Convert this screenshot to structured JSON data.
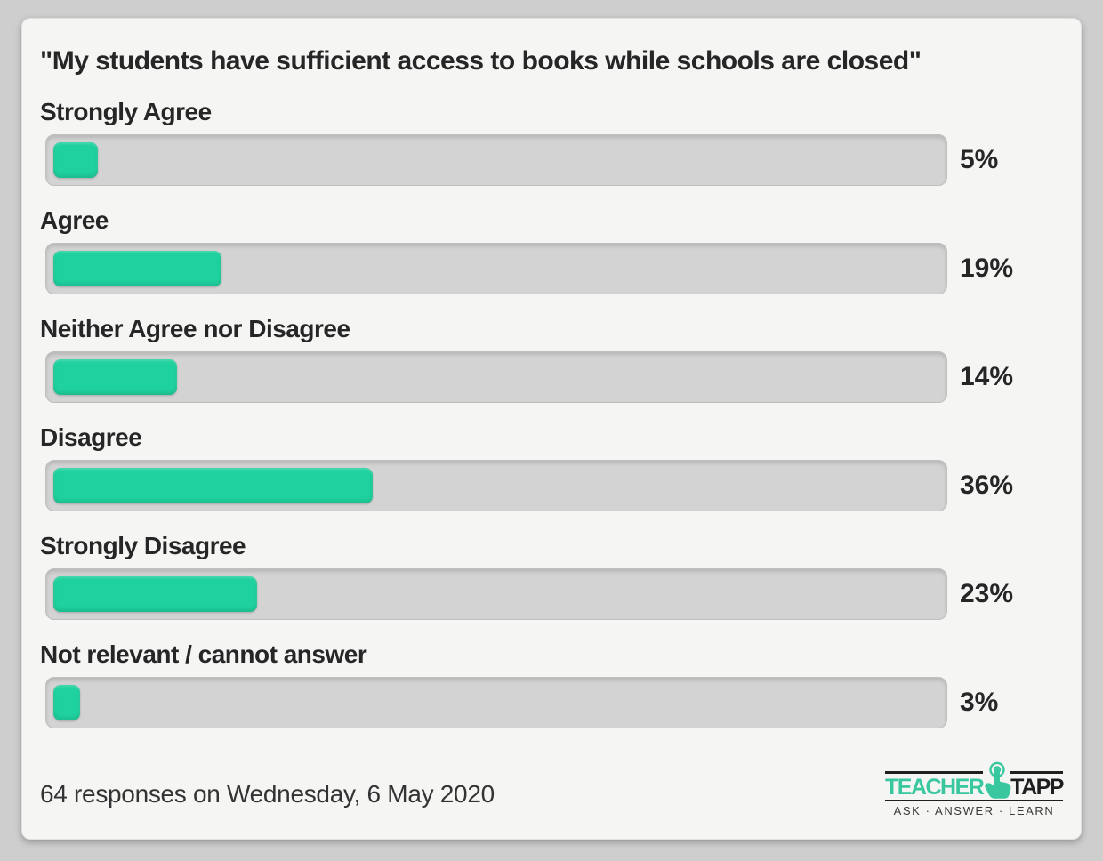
{
  "colors": {
    "page_bg": "#cecece",
    "card_bg": "#f5f5f4",
    "track_bg": "#d3d3d3",
    "track_border": "#c0bfbf",
    "bar_fill": "#1fd19e",
    "text_dark": "#262626",
    "logo_green": "#38c79e",
    "logo_dark": "#1f1f1f"
  },
  "chart_data": {
    "type": "bar",
    "orientation": "horizontal",
    "title": "\"My students have sufficient access to books while schools are closed\"",
    "categories": [
      "Strongly Agree",
      "Agree",
      "Neither Agree nor Disagree",
      "Disagree",
      "Strongly Disagree",
      "Not relevant / cannot answer"
    ],
    "values": [
      5,
      19,
      14,
      36,
      23,
      3
    ],
    "value_labels": [
      "5%",
      "19%",
      "14%",
      "36%",
      "23%",
      "3%"
    ],
    "value_unit": "%",
    "xlim": [
      0,
      100
    ],
    "grid": false,
    "legend": false,
    "bar_color": "#1fd19e",
    "track_color": "#d3d3d3"
  },
  "footer": {
    "caption": "64 responses on Wednesday, 6 May 2020",
    "logo": {
      "word1": "TEACHER",
      "word2": "TAPP",
      "tagline": "ASK · ANSWER · LEARN",
      "icon": "tap-hand-icon"
    }
  }
}
